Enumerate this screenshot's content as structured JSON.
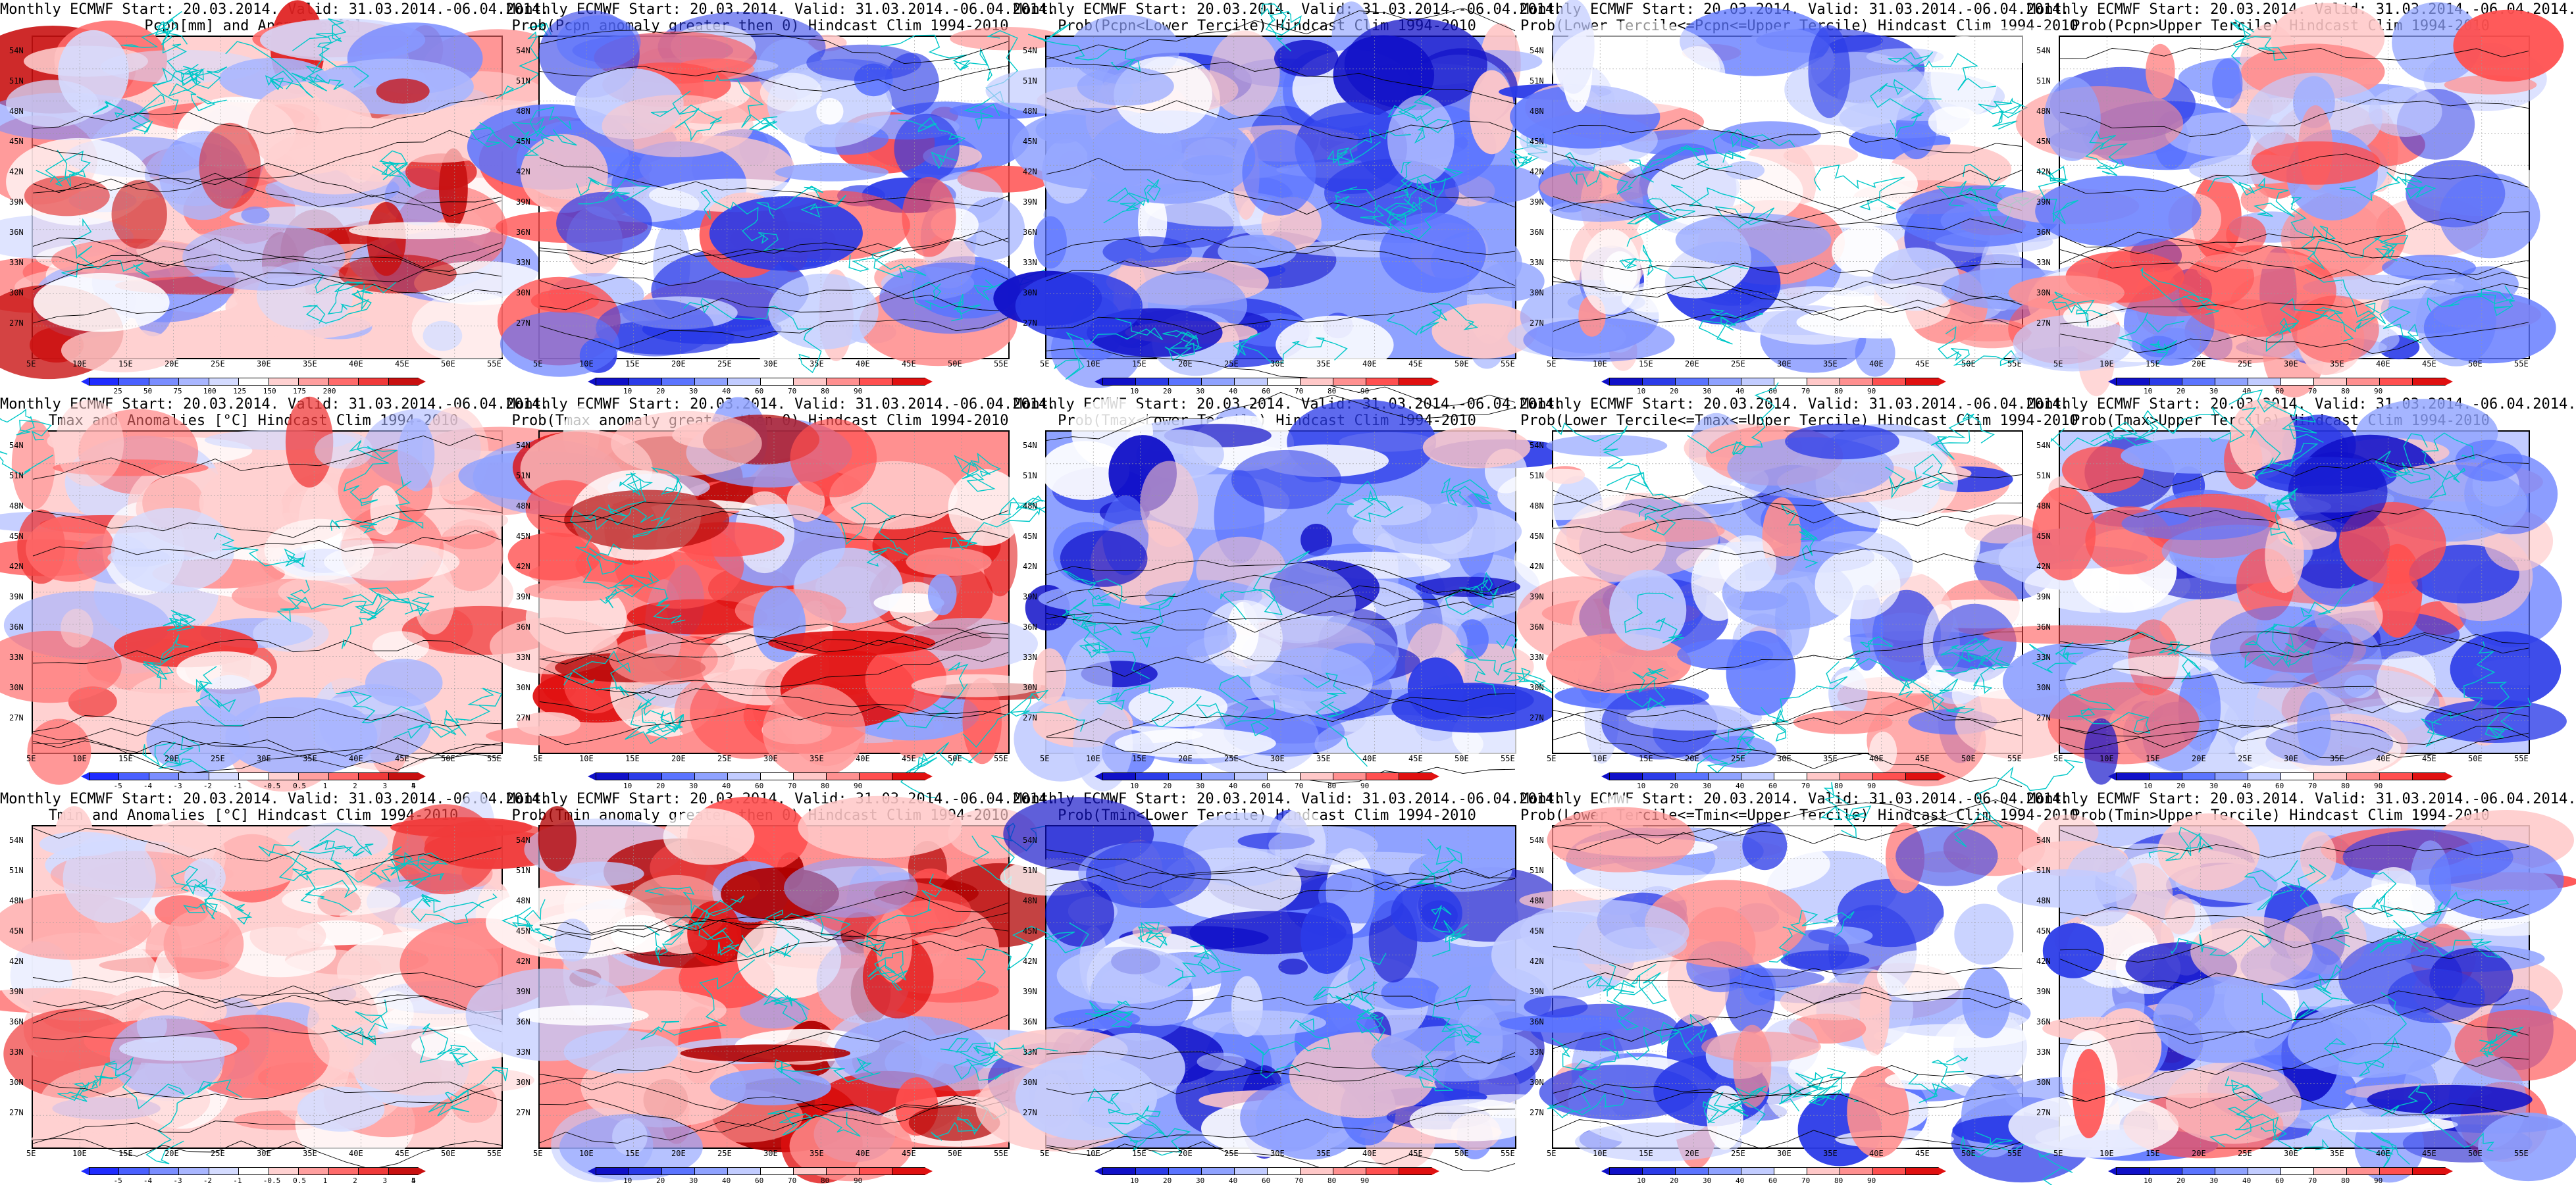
{
  "panels": [
    {
      "id": "pcpn-anom",
      "row": 0,
      "col": 0,
      "title1": "Monthly ECMWF Start: 20.03.2014. Valid: 31.03.2014.-06.04.2014.",
      "title2": "Pcpn[mm] and Anomalies[%]",
      "suffix": "",
      "type": "pcpn",
      "colorbar": {
        "colors": [
          "#1f2bff",
          "#4a60ff",
          "#7a8dff",
          "#a9b6ff",
          "#d4dbff",
          "#ffffff",
          "#ffd1d1",
          "#ff9f9f",
          "#ff6b6b",
          "#f03a3a",
          "#c81010"
        ],
        "ticks": [
          "25",
          "50",
          "75",
          "100",
          "125",
          "150",
          "175",
          "200"
        ]
      }
    },
    {
      "id": "pcpn-prob-pos",
      "row": 0,
      "col": 1,
      "title1": "Monthly ECMWF Start: 20.03.2014. Valid: 31.03.2014.-06.04.2014.",
      "title2": "Prob(Pcpn anomaly greater then 0) Hindcast Clim 1994-2010",
      "suffix": "",
      "type": "prob",
      "colorbar": {
        "colors": [
          "#1010c8",
          "#2b3be8",
          "#5b74ff",
          "#8fa2ff",
          "#c2ccff",
          "#ffffff",
          "#ffc8c8",
          "#ff9090",
          "#ff5050",
          "#e01010"
        ],
        "ticks": [
          "10",
          "20",
          "30",
          "40",
          "60",
          "70",
          "80",
          "90"
        ]
      }
    },
    {
      "id": "pcpn-lower",
      "row": 0,
      "col": 2,
      "title1": "Monthly ECMWF Start: 20.03.2014. Valid: 31.03.2014.-06.04.2014.",
      "title2": "Prob(Pcpn<Lower Tercile) Hindcast Clim 1994-2010",
      "suffix": "",
      "type": "probblue",
      "colorbar": {
        "colors": [
          "#1010c8",
          "#2b3be8",
          "#5b74ff",
          "#8fa2ff",
          "#c2ccff",
          "#ffffff",
          "#ffc8c8",
          "#ff9090",
          "#ff5050",
          "#e01010"
        ],
        "ticks": [
          "10",
          "20",
          "30",
          "40",
          "60",
          "70",
          "80",
          "90"
        ]
      }
    },
    {
      "id": "pcpn-middle",
      "row": 0,
      "col": 3,
      "title1": "Monthly ECMWF Start: 20.03.2014. Valid: 31.03.2014.-06.04.2014.",
      "title2": "Prob(Lower Tercile<=Pcpn<=Upper Tercile) Hindcast Clim 1994-2010",
      "suffix": "",
      "type": "probmix",
      "colorbar": {
        "colors": [
          "#1010c8",
          "#2b3be8",
          "#5b74ff",
          "#8fa2ff",
          "#c2ccff",
          "#ffffff",
          "#ffc8c8",
          "#ff9090",
          "#ff5050",
          "#e01010"
        ],
        "ticks": [
          "10",
          "20",
          "30",
          "40",
          "60",
          "70",
          "80",
          "90"
        ]
      }
    },
    {
      "id": "pcpn-upper",
      "row": 0,
      "col": 4,
      "title1": "Monthly ECMWF Start: 20.03.2014. Valid: 31.03.2014.-06.04.2014.",
      "title2": "Prob(Pcpn>Upper Tercile) Hindcast Clim 1994-2010",
      "suffix": "",
      "type": "prob",
      "colorbar": {
        "colors": [
          "#1010c8",
          "#2b3be8",
          "#5b74ff",
          "#8fa2ff",
          "#c2ccff",
          "#ffffff",
          "#ffc8c8",
          "#ff9090",
          "#ff5050",
          "#e01010"
        ],
        "ticks": [
          "10",
          "20",
          "30",
          "40",
          "60",
          "70",
          "80",
          "90"
        ]
      }
    },
    {
      "id": "tmax-anom",
      "row": 1,
      "col": 0,
      "title1": "Monthly ECMWF Start: 20.03.2014. Valid: 31.03.2014.-06.04.2014.",
      "title2": "Tmax and Anomalies [°C] Hindcast Clim 1994-2010",
      "suffix": "",
      "type": "warm",
      "colorbar": {
        "colors": [
          "#1f2bff",
          "#4a60ff",
          "#7a8dff",
          "#a9b6ff",
          "#d4dbff",
          "#ffffff",
          "#ffd1d1",
          "#ff9f9f",
          "#ff6b6b",
          "#f03a3a",
          "#c81010"
        ],
        "ticks": [
          "-5",
          "-4",
          "-3",
          "-2",
          "-1",
          "-0.5",
          "0.5",
          "1",
          "2",
          "3",
          "4",
          "5"
        ]
      }
    },
    {
      "id": "tmax-prob-pos",
      "row": 1,
      "col": 1,
      "title1": "Monthly ECMWF Start: 20.03.2014. Valid: 31.03.2014.-06.04.2014.",
      "title2": "Prob(Tmax anomaly greater then 0) Hindcast Clim 1994-2010",
      "suffix": "",
      "type": "hot",
      "colorbar": {
        "colors": [
          "#1010c8",
          "#2b3be8",
          "#5b74ff",
          "#8fa2ff",
          "#c2ccff",
          "#ffffff",
          "#ffc8c8",
          "#ff9090",
          "#ff5050",
          "#e01010"
        ],
        "ticks": [
          "10",
          "20",
          "30",
          "40",
          "60",
          "70",
          "80",
          "90"
        ]
      }
    },
    {
      "id": "tmax-lower",
      "row": 1,
      "col": 2,
      "title1": "Monthly ECMWF Start: 20.03.2014. Valid: 31.03.2014.-06.04.2014.",
      "title2": "Prob(Tmax<Lower Tercile) Hindcast Clim 1994-2010",
      "suffix": "",
      "type": "probblue",
      "colorbar": {
        "colors": [
          "#1010c8",
          "#2b3be8",
          "#5b74ff",
          "#8fa2ff",
          "#c2ccff",
          "#ffffff",
          "#ffc8c8",
          "#ff9090",
          "#ff5050",
          "#e01010"
        ],
        "ticks": [
          "10",
          "20",
          "30",
          "40",
          "60",
          "70",
          "80",
          "90"
        ]
      }
    },
    {
      "id": "tmax-middle",
      "row": 1,
      "col": 3,
      "title1": "Monthly ECMWF Start: 20.03.2014. Valid: 31.03.2014.-06.04.2014.",
      "title2": "Prob(Lower Tercile<=Tmax<=Upper Tercile) Hindcast Clim 1994-2010",
      "suffix": "",
      "type": "probmix",
      "colorbar": {
        "colors": [
          "#1010c8",
          "#2b3be8",
          "#5b74ff",
          "#8fa2ff",
          "#c2ccff",
          "#ffffff",
          "#ffc8c8",
          "#ff9090",
          "#ff5050",
          "#e01010"
        ],
        "ticks": [
          "10",
          "20",
          "30",
          "40",
          "60",
          "70",
          "80",
          "90"
        ]
      }
    },
    {
      "id": "tmax-upper",
      "row": 1,
      "col": 4,
      "title1": "Monthly ECMWF Start: 20.03.2014. Valid: 31.03.2014.-06.04.2014.",
      "title2": "Prob(Tmax>Upper Tercile) Hindcast Clim 1994-2010",
      "suffix": "",
      "type": "hotmix",
      "colorbar": {
        "colors": [
          "#1010c8",
          "#2b3be8",
          "#5b74ff",
          "#8fa2ff",
          "#c2ccff",
          "#ffffff",
          "#ffc8c8",
          "#ff9090",
          "#ff5050",
          "#e01010"
        ],
        "ticks": [
          "10",
          "20",
          "30",
          "40",
          "60",
          "70",
          "80",
          "90"
        ]
      }
    },
    {
      "id": "tmin-anom",
      "row": 2,
      "col": 0,
      "title1": "Monthly ECMWF Start: 20.03.2014. Valid: 31.03.2014.-06.04.2014.",
      "title2": "Tmin and Anomalies [°C] Hindcast Clim 1994-2010",
      "suffix": "",
      "type": "warm",
      "colorbar": {
        "colors": [
          "#1f2bff",
          "#4a60ff",
          "#7a8dff",
          "#a9b6ff",
          "#d4dbff",
          "#ffffff",
          "#ffd1d1",
          "#ff9f9f",
          "#ff6b6b",
          "#f03a3a",
          "#c81010"
        ],
        "ticks": [
          "-5",
          "-4",
          "-3",
          "-2",
          "-1",
          "-0.5",
          "0.5",
          "1",
          "2",
          "3",
          "4",
          "5"
        ]
      }
    },
    {
      "id": "tmin-prob-pos",
      "row": 2,
      "col": 1,
      "title1": "Monthly ECMWF Start: 20.03.2014. Valid: 31.03.2014.-06.04.2014.",
      "title2": "Prob(Tmin anomaly greater then 0) Hindcast Clim 1994-2010",
      "suffix": "",
      "type": "hot",
      "colorbar": {
        "colors": [
          "#1010c8",
          "#2b3be8",
          "#5b74ff",
          "#8fa2ff",
          "#c2ccff",
          "#ffffff",
          "#ffc8c8",
          "#ff9090",
          "#ff5050",
          "#e01010"
        ],
        "ticks": [
          "10",
          "20",
          "30",
          "40",
          "60",
          "70",
          "80",
          "90"
        ]
      }
    },
    {
      "id": "tmin-lower",
      "row": 2,
      "col": 2,
      "title1": "Monthly ECMWF Start: 20.03.2014. Valid: 31.03.2014.-06.04.2014.",
      "title2": "Prob(Tmin<Lower Tercile) Hindcast Clim 1994-2010",
      "suffix": "",
      "type": "probblue",
      "colorbar": {
        "colors": [
          "#1010c8",
          "#2b3be8",
          "#5b74ff",
          "#8fa2ff",
          "#c2ccff",
          "#ffffff",
          "#ffc8c8",
          "#ff9090",
          "#ff5050",
          "#e01010"
        ],
        "ticks": [
          "10",
          "20",
          "30",
          "40",
          "60",
          "70",
          "80",
          "90"
        ]
      }
    },
    {
      "id": "tmin-middle",
      "row": 2,
      "col": 3,
      "title1": "Monthly ECMWF Start: 20.03.2014. Valid: 31.03.2014.-06.04.2014.",
      "title2": "Prob(Lower Tercile<=Tmin<=Upper Tercile) Hindcast Clim 1994-2010",
      "suffix": "",
      "type": "probmix",
      "colorbar": {
        "colors": [
          "#1010c8",
          "#2b3be8",
          "#5b74ff",
          "#8fa2ff",
          "#c2ccff",
          "#ffffff",
          "#ffc8c8",
          "#ff9090",
          "#ff5050",
          "#e01010"
        ],
        "ticks": [
          "10",
          "20",
          "30",
          "40",
          "60",
          "70",
          "80",
          "90"
        ]
      }
    },
    {
      "id": "tmin-upper",
      "row": 2,
      "col": 4,
      "title1": "Monthly ECMWF Start: 20.03.2014. Valid: 31.03.2014.-06.04.2014.",
      "title2": "Prob(Tmin>Upper Tercile) Hindcast Clim 1994-2010",
      "suffix": "",
      "type": "hotmix",
      "colorbar": {
        "colors": [
          "#1010c8",
          "#2b3be8",
          "#5b74ff",
          "#8fa2ff",
          "#c2ccff",
          "#ffffff",
          "#ffc8c8",
          "#ff9090",
          "#ff5050",
          "#e01010"
        ],
        "ticks": [
          "10",
          "20",
          "30",
          "40",
          "60",
          "70",
          "80",
          "90"
        ]
      }
    }
  ],
  "lat_labels": [
    "54N",
    "51N",
    "48N",
    "45N",
    "42N",
    "39N",
    "36N",
    "33N",
    "30N",
    "27N"
  ],
  "lon_labels": [
    "5E",
    "10E",
    "15E",
    "20E",
    "25E",
    "30E",
    "35E",
    "40E",
    "45E",
    "50E",
    "55E"
  ],
  "colors": {
    "coast": "#00c8c8",
    "contour": "#000000"
  }
}
